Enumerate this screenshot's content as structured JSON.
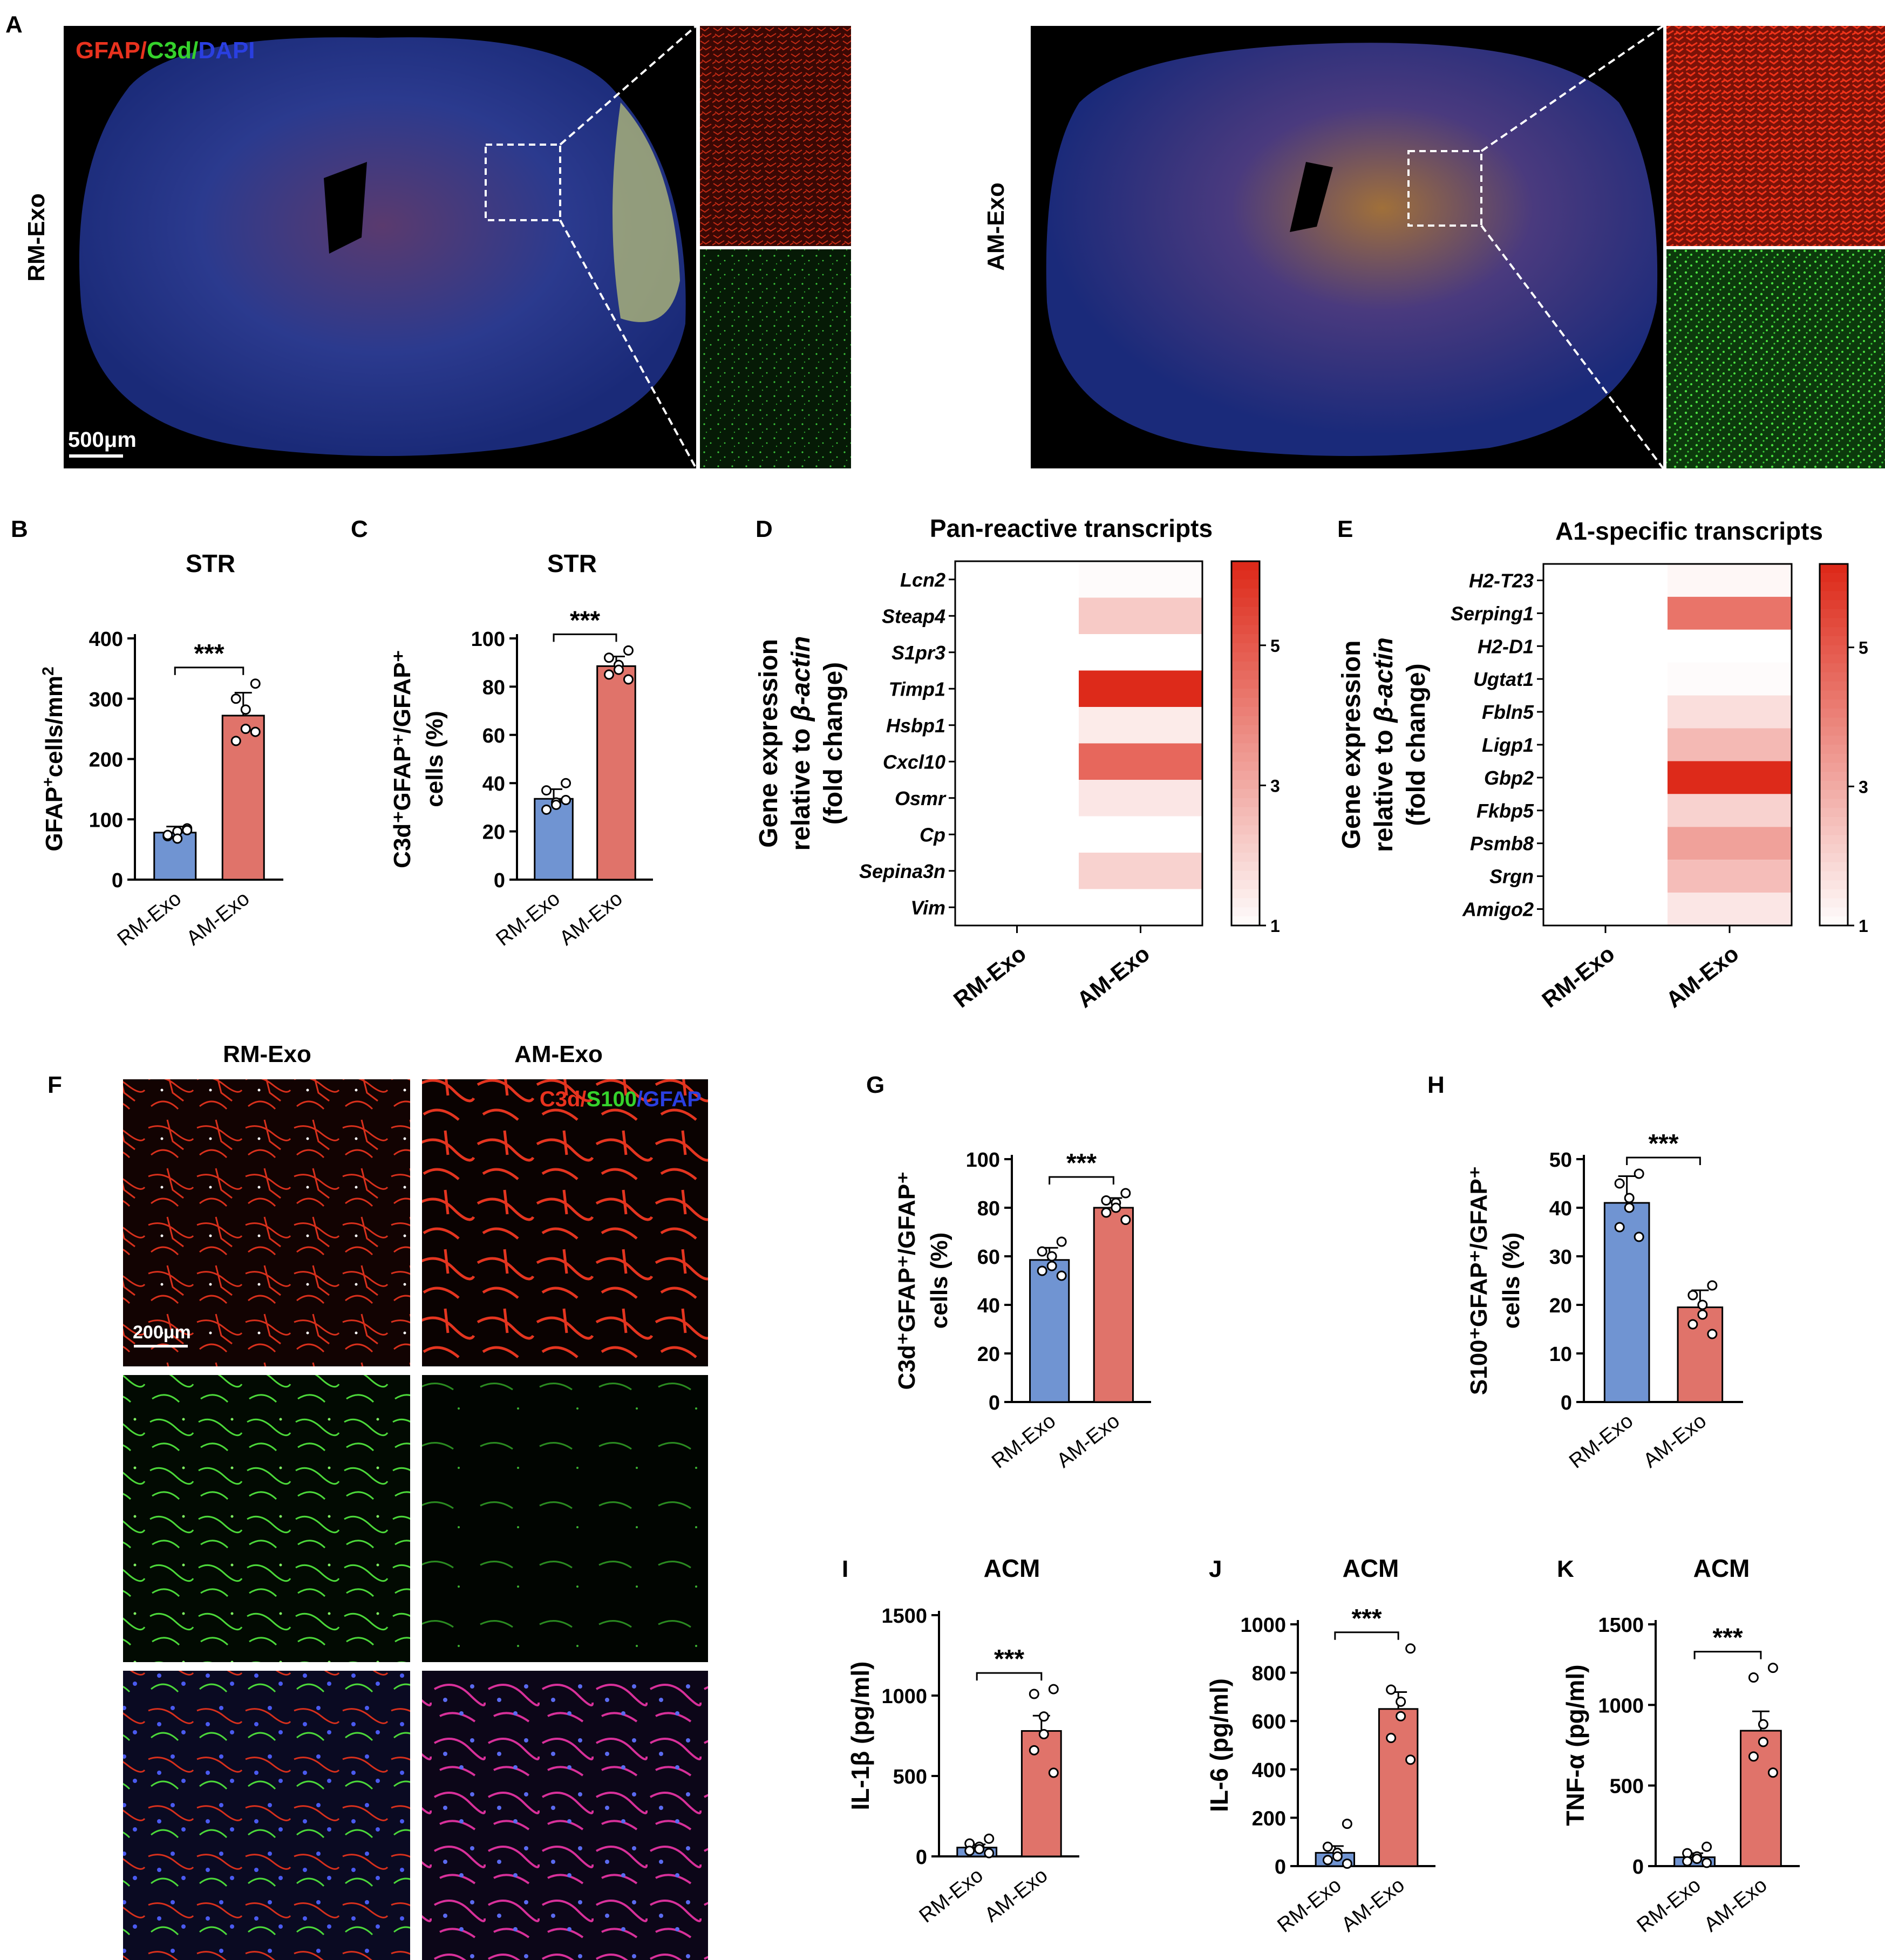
{
  "panel_letters": [
    "A",
    "B",
    "C",
    "D",
    "E",
    "F",
    "G",
    "H",
    "I",
    "J",
    "K"
  ],
  "panelA": {
    "row_labels": [
      "RM-Exo",
      "AM-Exo"
    ],
    "stain_label": [
      {
        "text": "GFAP",
        "color": "#e8321e"
      },
      {
        "text": "/",
        "color": "#e8321e"
      },
      {
        "text": "C3d",
        "color": "#35d22c"
      },
      {
        "text": "/",
        "color": "#35d22c"
      },
      {
        "text": "DAPI",
        "color": "#2a3fe0"
      }
    ],
    "scale_bar": "500μm"
  },
  "panelF": {
    "column_labels": [
      "RM-Exo",
      "AM-Exo"
    ],
    "stain_label": [
      {
        "text": "C3d/",
        "color": "#e8321e"
      },
      {
        "text": "S100",
        "color": "#35d22c"
      },
      {
        "text": "/GFAP",
        "color": "#2a3fe0"
      }
    ],
    "scale_bar": "200μm"
  },
  "significance": "***",
  "colors": {
    "rm": "#7094d2",
    "am": "#e0736a",
    "heat_low": "#ffffff",
    "heat_high": "#dd2a1a"
  },
  "chart_data": [
    {
      "id": "B",
      "type": "bar",
      "title": "STR",
      "ylabel_main": "GFAP",
      "ylabel_sup": "+",
      "ylabel_rest": "cells/mm",
      "ylabel_sup2": "2",
      "categories": [
        "RM-Exo",
        "AM-Exo"
      ],
      "values": [
        78,
        272
      ],
      "errors": [
        10,
        38
      ],
      "ylim": [
        0,
        400
      ],
      "yticks": [
        0,
        100,
        200,
        300,
        400
      ],
      "points": [
        [
          85,
          72,
          80,
          68,
          74,
          82
        ],
        [
          325,
          300,
          282,
          250,
          230,
          245
        ]
      ]
    },
    {
      "id": "C",
      "type": "bar",
      "title": "STR",
      "ylabel_line1": "C3d⁺GFAP⁺/GFAP⁺",
      "ylabel_line2": "cells (%)",
      "categories": [
        "RM-Exo",
        "AM-Exo"
      ],
      "values": [
        33.5,
        88.5
      ],
      "errors": [
        4,
        4
      ],
      "ylim": [
        0,
        100
      ],
      "yticks": [
        0,
        20,
        40,
        60,
        80,
        100
      ],
      "points": [
        [
          40,
          37,
          32,
          31,
          29,
          33
        ],
        [
          95,
          92,
          89,
          87,
          85,
          83
        ]
      ]
    },
    {
      "id": "D",
      "type": "heatmap",
      "title": "Pan-reactive transcripts",
      "ylabel_line1": "Gene expression",
      "ylabel_line2_pre": "relative to ",
      "ylabel_line2_it": "β-actin",
      "ylabel_line3": "(fold change)",
      "genes": [
        "Lcn2",
        "Steap4",
        "S1pr3",
        "Timp1",
        "Hsbp1",
        "Cxcl10",
        "Osmr",
        "Cp",
        "Sepina3n",
        "Vim"
      ],
      "columns": [
        "RM-Exo",
        "AM-Exo"
      ],
      "values": [
        [
          1,
          1,
          1,
          1,
          1,
          1,
          1,
          1,
          1,
          1
        ],
        [
          1.1,
          2.3,
          1.0,
          6.2,
          1.5,
          4.7,
          1.6,
          1.0,
          2.1,
          1.0
        ]
      ],
      "range": [
        1,
        6.2
      ],
      "colorbar_ticks": [
        1,
        3,
        5
      ]
    },
    {
      "id": "E",
      "type": "heatmap",
      "title": "A1-specific transcripts",
      "ylabel_line1": "Gene expression",
      "ylabel_line2_pre": "relative to ",
      "ylabel_line2_it": "β-actin",
      "ylabel_line3": "(fold change)",
      "genes": [
        "H2-T23",
        "Serping1",
        "H2-D1",
        "Ugtat1",
        "Fbln5",
        "Ligp1",
        "Gbp2",
        "Fkbp5",
        "Psmb8",
        "Srgn",
        "Amigo2"
      ],
      "columns": [
        "RM-Exo",
        "AM-Exo"
      ],
      "values": [
        [
          1,
          1,
          1,
          1,
          1,
          1,
          1,
          1,
          1,
          1,
          1
        ],
        [
          1.2,
          4.4,
          1.0,
          1.1,
          1.8,
          2.7,
          6.2,
          2.1,
          3.3,
          2.6,
          1.6
        ]
      ],
      "range": [
        1,
        6.2
      ],
      "colorbar_ticks": [
        1,
        3,
        5
      ]
    },
    {
      "id": "G",
      "type": "bar",
      "title": "",
      "ylabel_line1": "C3d⁺GFAP⁺/GFAP⁺",
      "ylabel_line2": "cells (%)",
      "categories": [
        "RM-Exo",
        "AM-Exo"
      ],
      "values": [
        58.5,
        80
      ],
      "errors": [
        5,
        4
      ],
      "ylim": [
        0,
        100
      ],
      "yticks": [
        0,
        20,
        40,
        60,
        80,
        100
      ],
      "points": [
        [
          66,
          62,
          60,
          56,
          54,
          52
        ],
        [
          86,
          83,
          82,
          80,
          78,
          75
        ]
      ]
    },
    {
      "id": "H",
      "type": "bar",
      "title": "",
      "ylabel_line1": "S100⁺GFAP⁺/GFAP⁺",
      "ylabel_line2": "cells (%)",
      "categories": [
        "RM-Exo",
        "AM-Exo"
      ],
      "values": [
        41,
        19.5
      ],
      "errors": [
        5.5,
        3.5
      ],
      "ylim": [
        0,
        50
      ],
      "yticks": [
        0,
        10,
        20,
        30,
        40,
        50
      ],
      "points": [
        [
          47,
          45,
          42,
          40,
          36,
          34
        ],
        [
          24,
          22,
          20,
          18,
          16,
          14
        ]
      ]
    },
    {
      "id": "I",
      "type": "bar",
      "title": "ACM",
      "ylabel_line1": "IL-1β (pg/ml)",
      "categories": [
        "RM-Exo",
        "AM-Exo"
      ],
      "values": [
        55,
        780
      ],
      "errors": [
        20,
        95
      ],
      "ylim": [
        0,
        1500
      ],
      "yticks": [
        0,
        500,
        1000,
        1500
      ],
      "points": [
        [
          110,
          80,
          60,
          45,
          35,
          20
        ],
        [
          1040,
          1010,
          870,
          760,
          660,
          520
        ]
      ]
    },
    {
      "id": "J",
      "type": "bar",
      "title": "ACM",
      "ylabel_line1": "IL-6 (pg/ml)",
      "categories": [
        "RM-Exo",
        "AM-Exo"
      ],
      "values": [
        55,
        650
      ],
      "errors": [
        28,
        70
      ],
      "ylim": [
        0,
        1000
      ],
      "yticks": [
        0,
        200,
        400,
        600,
        800,
        1000
      ],
      "points": [
        [
          175,
          80,
          55,
          40,
          25,
          10
        ],
        [
          900,
          730,
          680,
          620,
          530,
          440
        ]
      ]
    },
    {
      "id": "K",
      "type": "bar",
      "title": "ACM",
      "ylabel_line1": "TNF-α (pg/ml)",
      "categories": [
        "RM-Exo",
        "AM-Exo"
      ],
      "values": [
        55,
        840
      ],
      "errors": [
        25,
        120
      ],
      "ylim": [
        0,
        1500
      ],
      "yticks": [
        0,
        500,
        1000,
        1500
      ],
      "points": [
        [
          120,
          80,
          60,
          45,
          30,
          20
        ],
        [
          1230,
          1170,
          880,
          770,
          680,
          580
        ]
      ]
    }
  ]
}
